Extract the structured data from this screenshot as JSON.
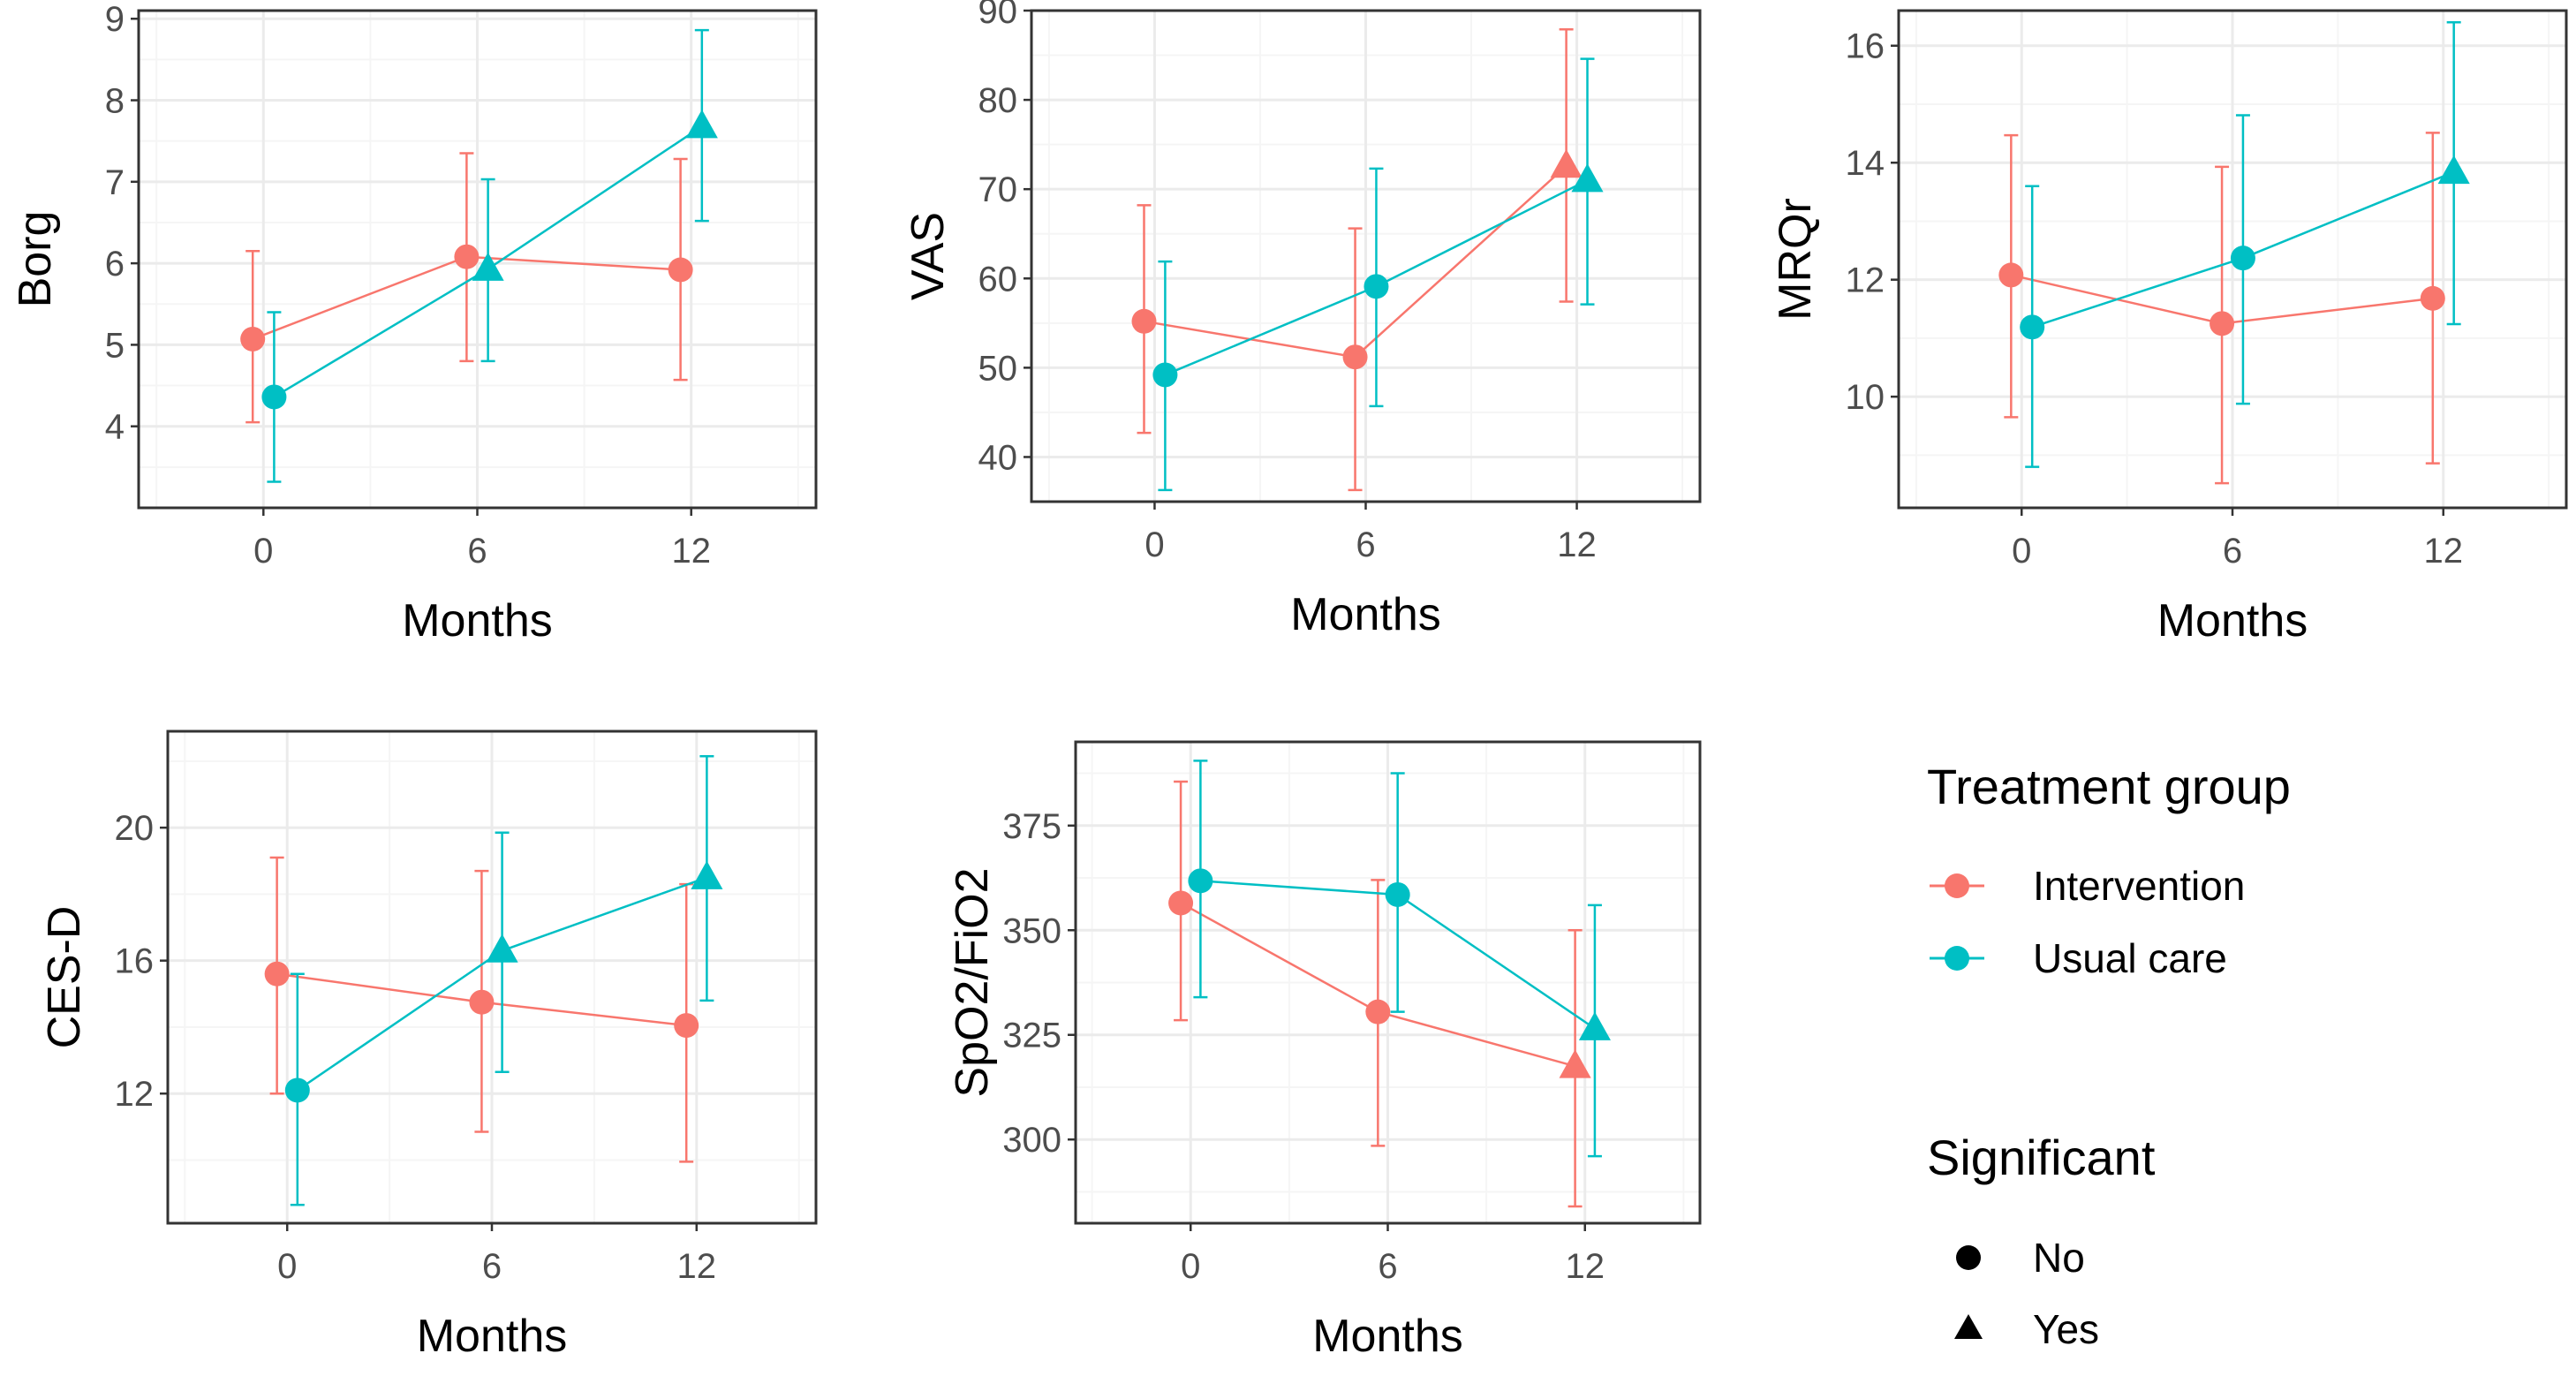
{
  "colors": {
    "intervention": "#F8766D",
    "usual_care": "#00BFC4",
    "grid_major": "#EBEBEB",
    "grid_minor": "#F5F5F5",
    "panel_border": "#333333"
  },
  "legend": {
    "group_title": "Treatment group",
    "groups": [
      "Intervention",
      "Usual care"
    ],
    "sig_title": "Significant",
    "sig_levels": [
      "No",
      "Yes"
    ]
  },
  "chart_data": [
    {
      "type": "line",
      "title": "",
      "xlabel": "Months",
      "ylabel": "Borg",
      "x_ticks": [
        "0",
        "6",
        "12"
      ],
      "xlim": [
        -3.5,
        15.5
      ],
      "ylim": [
        3.0,
        9.1
      ],
      "y_ticks": [
        4,
        5,
        6,
        7,
        8,
        9
      ],
      "series": [
        {
          "name": "Intervention",
          "x": [
            0,
            6,
            12
          ],
          "y": [
            5.07,
            6.08,
            5.92
          ],
          "lower": [
            4.05,
            4.8,
            4.57
          ],
          "upper": [
            6.15,
            7.35,
            7.28
          ],
          "significant": [
            "No",
            "No",
            "No"
          ]
        },
        {
          "name": "Usual care",
          "x": [
            0,
            6,
            12
          ],
          "y": [
            4.36,
            5.93,
            7.68
          ],
          "lower": [
            3.32,
            4.8,
            6.52
          ],
          "upper": [
            5.4,
            7.03,
            8.86
          ],
          "significant": [
            "No",
            "Yes",
            "Yes"
          ]
        }
      ]
    },
    {
      "type": "line",
      "title": "",
      "xlabel": "Months",
      "ylabel": "VAS",
      "x_ticks": [
        "0",
        "6",
        "12"
      ],
      "xlim": [
        -3.5,
        15.5
      ],
      "ylim": [
        35,
        90
      ],
      "y_ticks": [
        40,
        50,
        60,
        70,
        80,
        90
      ],
      "series": [
        {
          "name": "Intervention",
          "x": [
            0,
            6,
            12
          ],
          "y": [
            55.2,
            51.2,
            72.6
          ],
          "lower": [
            42.7,
            36.3,
            57.4
          ],
          "upper": [
            68.2,
            65.6,
            87.9
          ],
          "significant": [
            "No",
            "No",
            "Yes"
          ]
        },
        {
          "name": "Usual care",
          "x": [
            0,
            6,
            12
          ],
          "y": [
            49.2,
            59.1,
            71.0
          ],
          "lower": [
            36.3,
            45.7,
            57.1
          ],
          "upper": [
            61.9,
            72.3,
            84.6
          ],
          "significant": [
            "No",
            "No",
            "Yes"
          ]
        }
      ]
    },
    {
      "type": "line",
      "title": "",
      "xlabel": "Months",
      "ylabel": "MRQr",
      "x_ticks": [
        "0",
        "6",
        "12"
      ],
      "xlim": [
        -3.5,
        15.5
      ],
      "ylim": [
        8.1,
        16.6
      ],
      "y_ticks": [
        10,
        12,
        14,
        16
      ],
      "series": [
        {
          "name": "Intervention",
          "x": [
            0,
            6,
            12
          ],
          "y": [
            12.08,
            11.25,
            11.68
          ],
          "lower": [
            9.65,
            8.52,
            8.86
          ],
          "upper": [
            14.47,
            13.93,
            14.51
          ],
          "significant": [
            "No",
            "No",
            "No"
          ]
        },
        {
          "name": "Usual care",
          "x": [
            0,
            6,
            12
          ],
          "y": [
            11.19,
            12.37,
            13.84
          ],
          "lower": [
            8.8,
            9.88,
            11.24
          ],
          "upper": [
            13.6,
            14.81,
            16.4
          ],
          "significant": [
            "No",
            "No",
            "Yes"
          ]
        }
      ]
    },
    {
      "type": "line",
      "title": "",
      "xlabel": "Months",
      "ylabel": "CES-D",
      "x_ticks": [
        "0",
        "6",
        "12"
      ],
      "xlim": [
        -3.5,
        15.5
      ],
      "ylim": [
        8.1,
        22.9
      ],
      "y_ticks": [
        12,
        16,
        20
      ],
      "series": [
        {
          "name": "Intervention",
          "x": [
            0,
            6,
            12
          ],
          "y": [
            15.6,
            14.75,
            14.05
          ],
          "lower": [
            12.0,
            10.85,
            9.95
          ],
          "upper": [
            19.1,
            18.7,
            18.3
          ],
          "significant": [
            "No",
            "No",
            "No"
          ]
        },
        {
          "name": "Usual care",
          "x": [
            0,
            6,
            12
          ],
          "y": [
            12.1,
            16.3,
            18.5
          ],
          "lower": [
            8.65,
            12.65,
            14.8
          ],
          "upper": [
            15.6,
            19.85,
            22.15
          ],
          "significant": [
            "No",
            "Yes",
            "Yes"
          ]
        }
      ]
    },
    {
      "type": "line",
      "title": "",
      "xlabel": "Months",
      "ylabel": "SpO2/FiO2",
      "x_ticks": [
        "0",
        "6",
        "12"
      ],
      "xlim": [
        -3.5,
        15.5
      ],
      "ylim": [
        280,
        395
      ],
      "y_ticks": [
        300,
        325,
        350,
        375
      ],
      "series": [
        {
          "name": "Intervention",
          "x": [
            0,
            6,
            12
          ],
          "y": [
            356.5,
            330.5,
            317.5
          ],
          "lower": [
            328.5,
            298.5,
            284.0
          ],
          "upper": [
            385.5,
            362.0,
            350.0
          ],
          "significant": [
            "No",
            "No",
            "Yes"
          ]
        },
        {
          "name": "Usual care",
          "x": [
            0,
            6,
            12
          ],
          "y": [
            361.8,
            358.5,
            326.5
          ],
          "lower": [
            334.0,
            330.5,
            296.0
          ],
          "upper": [
            390.5,
            387.5,
            356.0
          ],
          "significant": [
            "No",
            "No",
            "Yes"
          ]
        }
      ]
    }
  ]
}
